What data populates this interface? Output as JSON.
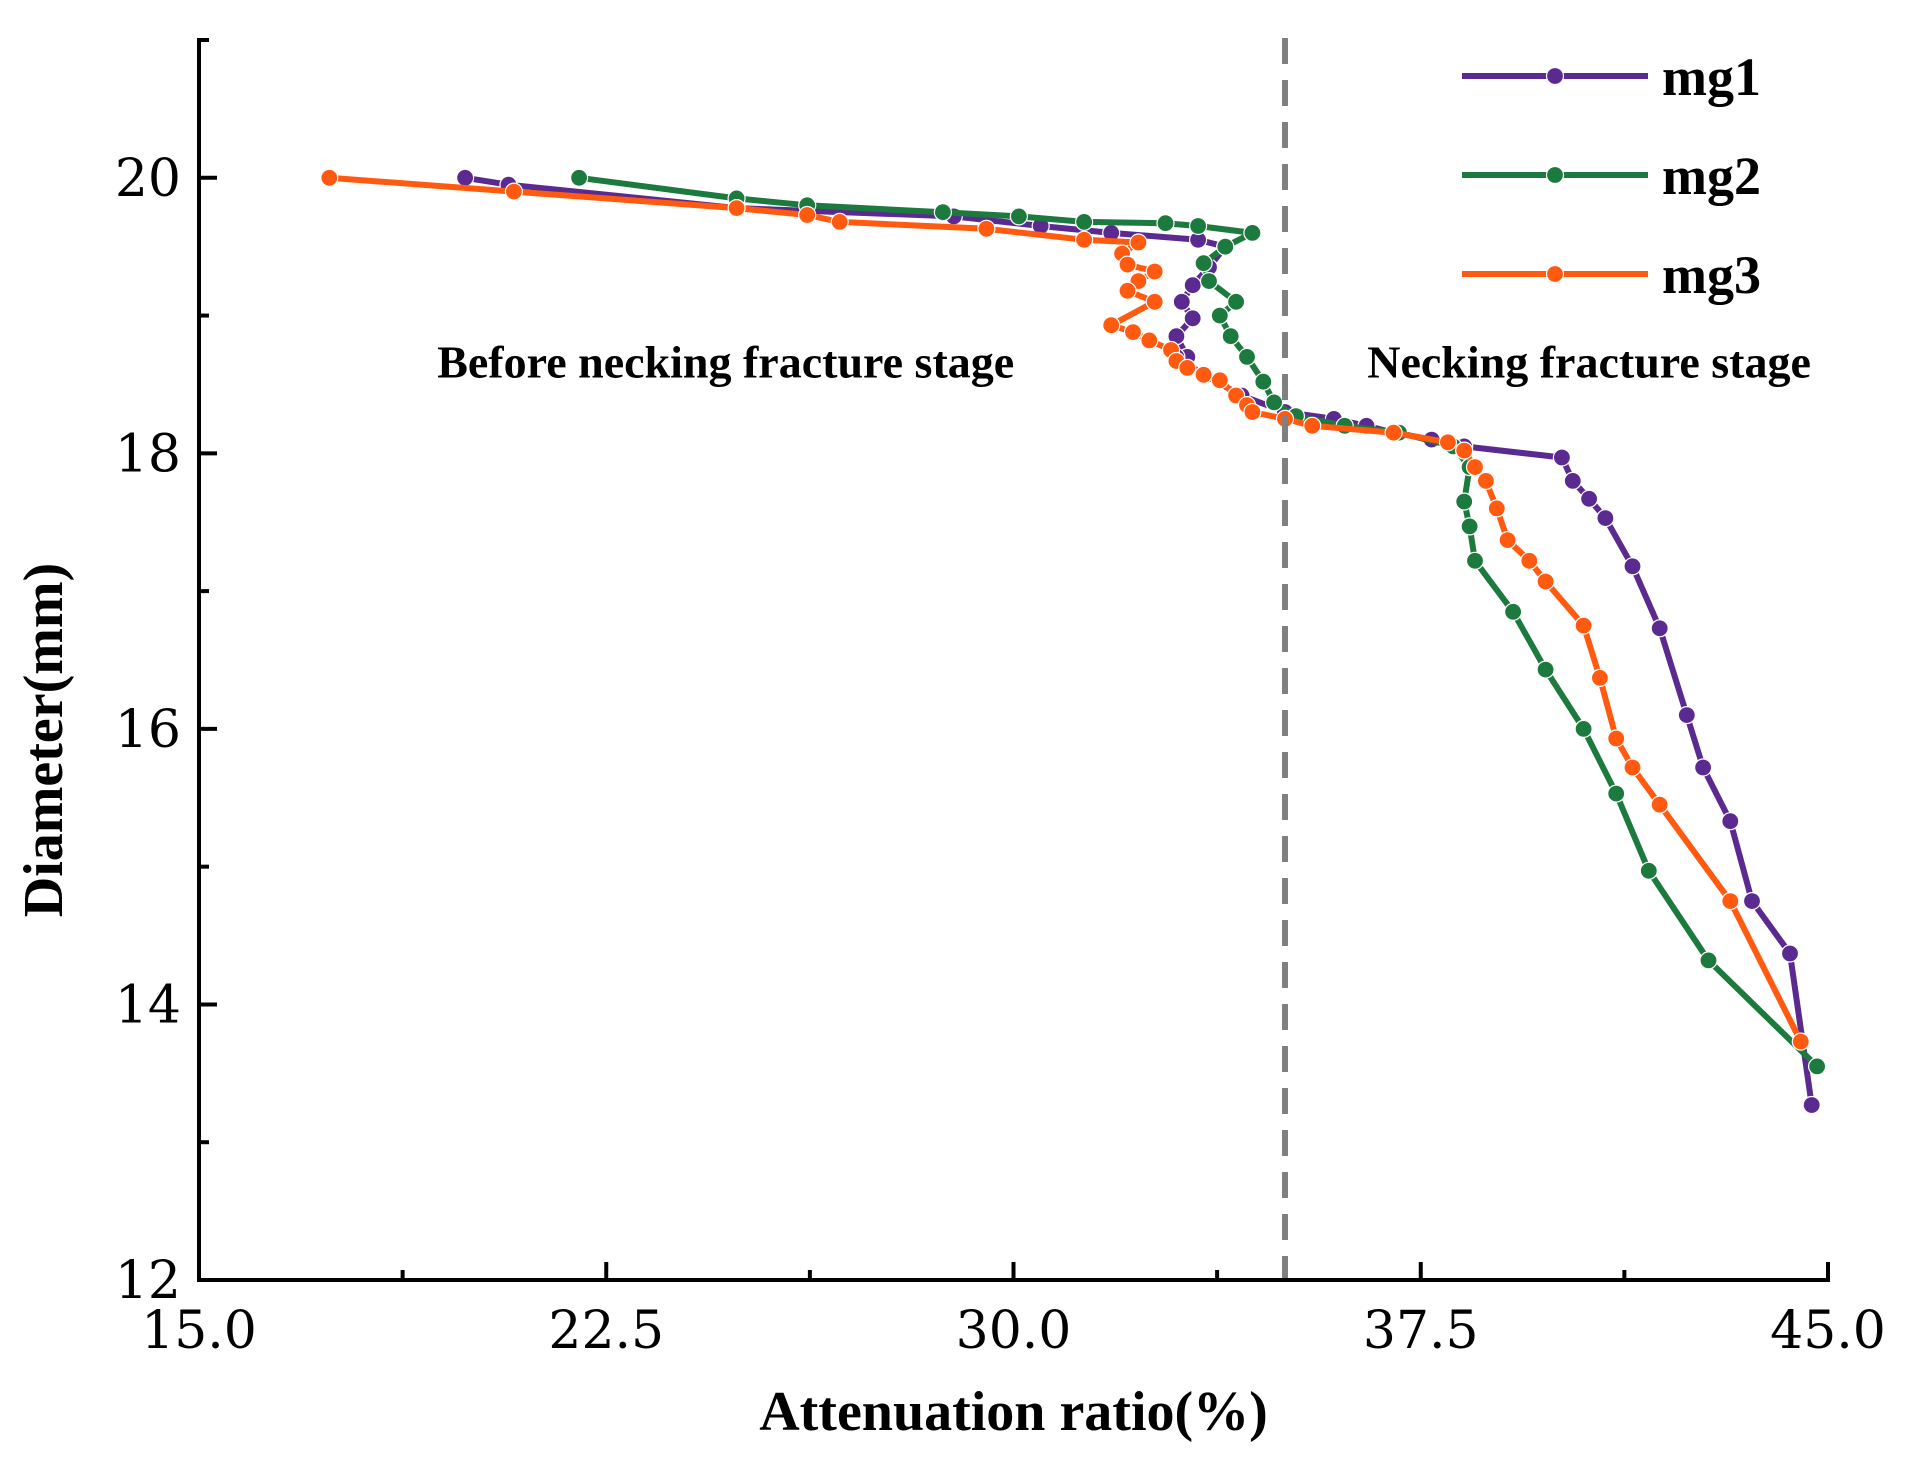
{
  "chart_data": {
    "type": "line",
    "title": "",
    "xlabel": "Attenuation ratio(%)",
    "ylabel": "Diameter(mm)",
    "xlim": [
      15.0,
      45.0
    ],
    "ylim": [
      12,
      21
    ],
    "x_ticks": [
      "15.0",
      "22.5",
      "30.0",
      "37.5",
      "45.0"
    ],
    "y_ticks": [
      "12",
      "14",
      "16",
      "18",
      "20"
    ],
    "grid": false,
    "legend_position": "top-right",
    "divider": {
      "x": 35.0,
      "style": "dashed",
      "color": "#808080"
    },
    "annotations": [
      {
        "text": "Before necking fracture stage",
        "x": 24.7,
        "y": 18.55
      },
      {
        "text": "Necking fracture stage",
        "x": 40.6,
        "y": 18.55
      }
    ],
    "series": [
      {
        "name": "mg1",
        "color": "#5b2a91",
        "x": [
          19.9,
          20.7,
          24.9,
          28.9,
          30.5,
          31.8,
          33.4,
          33.9,
          33.6,
          33.3,
          33.1,
          33.3,
          33.0,
          33.2,
          33.0,
          33.5,
          34.2,
          35.0,
          35.9,
          36.5,
          37.0,
          37.7,
          38.3,
          40.1,
          40.3,
          40.6,
          40.9,
          41.4,
          41.9,
          42.4,
          42.7,
          43.2,
          43.6,
          44.3,
          44.7
        ],
        "y": [
          20.0,
          19.95,
          19.78,
          19.72,
          19.65,
          19.6,
          19.55,
          19.5,
          19.35,
          19.22,
          19.1,
          18.98,
          18.85,
          18.7,
          18.7,
          18.57,
          18.42,
          18.3,
          18.25,
          18.2,
          18.15,
          18.1,
          18.05,
          17.97,
          17.8,
          17.67,
          17.53,
          17.18,
          16.73,
          16.1,
          15.72,
          15.33,
          14.75,
          14.37,
          13.27
        ]
      },
      {
        "name": "mg2",
        "color": "#1d7a3e",
        "x": [
          22.0,
          24.9,
          26.2,
          28.7,
          30.1,
          31.3,
          32.8,
          33.4,
          34.4,
          33.9,
          33.5,
          33.6,
          34.1,
          33.8,
          34.0,
          34.3,
          34.6,
          34.8,
          35.2,
          36.1,
          37.1,
          38.1,
          38.4,
          38.3,
          38.4,
          38.5,
          39.2,
          39.8,
          40.5,
          41.1,
          41.7,
          42.8,
          44.8
        ],
        "y": [
          20.0,
          19.85,
          19.8,
          19.75,
          19.72,
          19.68,
          19.67,
          19.65,
          19.6,
          19.5,
          19.38,
          19.25,
          19.1,
          19.0,
          18.85,
          18.7,
          18.52,
          18.37,
          18.27,
          18.2,
          18.15,
          18.05,
          17.9,
          17.65,
          17.47,
          17.22,
          16.85,
          16.43,
          16.0,
          15.53,
          14.97,
          14.32,
          13.55
        ]
      },
      {
        "name": "mg3",
        "color": "#ff5a10",
        "x": [
          17.4,
          20.8,
          24.9,
          26.2,
          26.8,
          29.5,
          31.3,
          32.3,
          32.0,
          32.1,
          32.6,
          32.3,
          32.1,
          32.6,
          31.8,
          32.2,
          32.5,
          32.9,
          33.0,
          33.2,
          33.5,
          33.8,
          34.1,
          34.3,
          34.4,
          35.0,
          35.5,
          37.0,
          38.0,
          38.3,
          38.5,
          38.7,
          38.9,
          39.1,
          39.5,
          39.8,
          40.5,
          40.8,
          41.1,
          41.4,
          41.9,
          43.2,
          44.5
        ],
        "y": [
          20.0,
          19.9,
          19.78,
          19.73,
          19.68,
          19.63,
          19.55,
          19.53,
          19.45,
          19.37,
          19.32,
          19.25,
          19.18,
          19.1,
          18.93,
          18.88,
          18.82,
          18.75,
          18.67,
          18.62,
          18.57,
          18.53,
          18.42,
          18.35,
          18.3,
          18.25,
          18.2,
          18.15,
          18.08,
          18.02,
          17.9,
          17.8,
          17.6,
          17.37,
          17.22,
          17.07,
          16.75,
          16.37,
          15.93,
          15.72,
          15.45,
          14.75,
          13.73
        ]
      }
    ]
  }
}
